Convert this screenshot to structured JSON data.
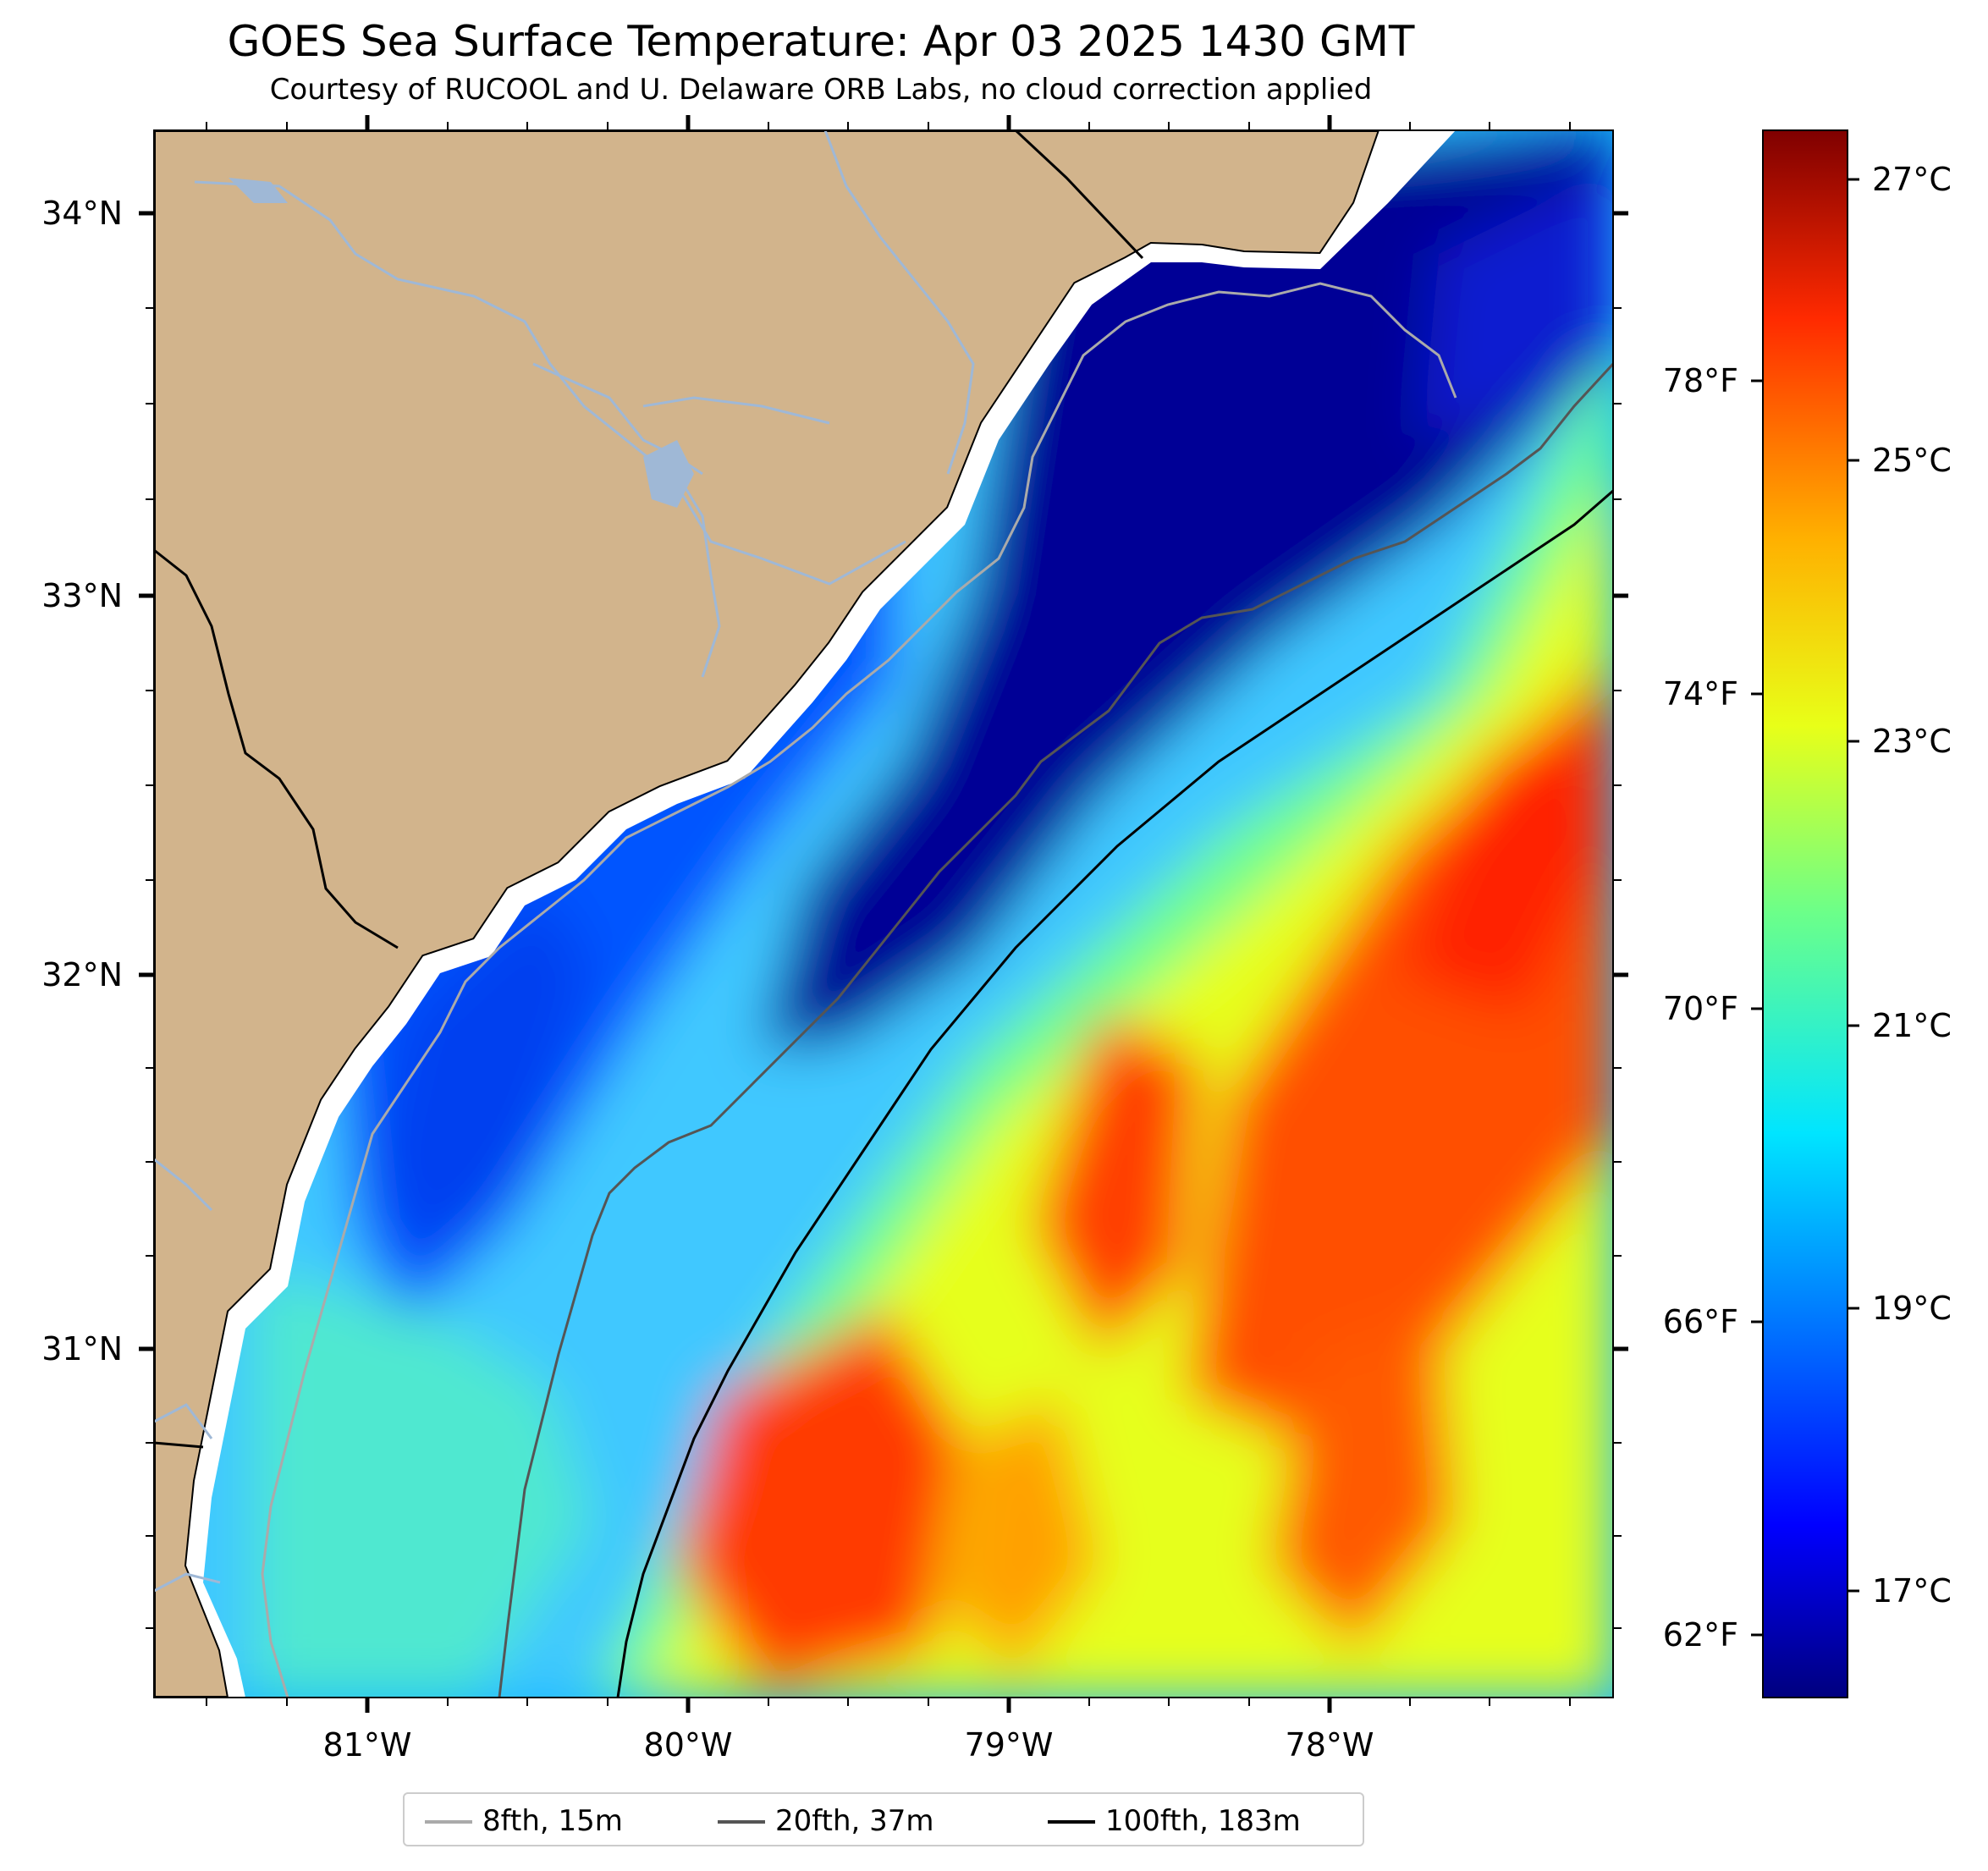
{
  "header": {
    "title": "GOES Sea Surface Temperature: Apr 03 2025 1430 GMT",
    "subtitle": "Courtesy of RUCOOL and U. Delaware ORB Labs, no cloud correction applied"
  },
  "map": {
    "lon_labels": [
      "81°W",
      "80°W",
      "79°W",
      "78°W"
    ],
    "lat_labels": [
      "34°N",
      "33°N",
      "32°N",
      "31°N"
    ],
    "colors": {
      "land": "#d2b48c",
      "coastline": "#000000",
      "rivers": "#9fb8d6",
      "nodata": "#ffffff"
    }
  },
  "colorbar": {
    "celsius_labels": [
      "27°C",
      "25°C",
      "23°C",
      "21°C",
      "19°C",
      "17°C"
    ],
    "fahrenheit_labels": [
      "78°F",
      "74°F",
      "70°F",
      "66°F",
      "62°F"
    ],
    "colormap": "jet"
  },
  "legend": {
    "items": [
      {
        "label": "8fth, 15m",
        "color": "#aaaaaa"
      },
      {
        "label": "20fth, 37m",
        "color": "#555555"
      },
      {
        "label": "100fth, 183m",
        "color": "#000000"
      }
    ]
  }
}
